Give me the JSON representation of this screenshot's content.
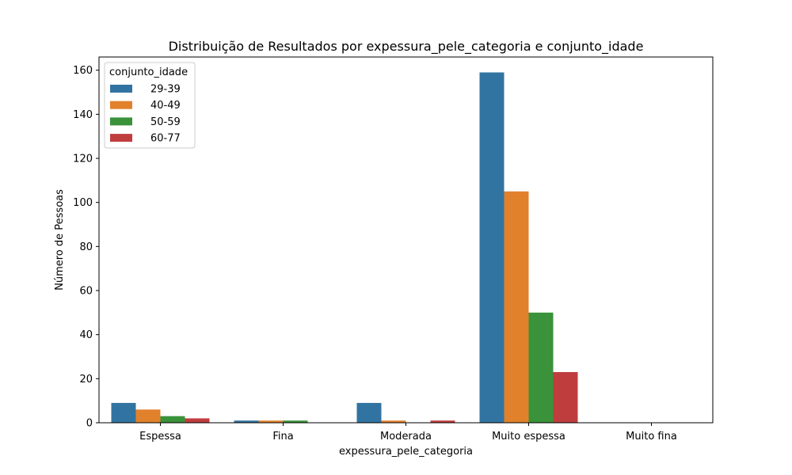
{
  "chart_data": {
    "type": "bar",
    "title": "Distribuição de Resultados por expessura_pele_categoria e conjunto_idade",
    "xlabel": "expessura_pele_categoria",
    "ylabel": "Número de Pessoas",
    "categories": [
      "Espessa",
      "Fina",
      "Moderada",
      "Muito espessa",
      "Muito fina"
    ],
    "ylim": [
      0,
      166
    ],
    "yticks": [
      0,
      20,
      40,
      60,
      80,
      100,
      120,
      140,
      160
    ],
    "grid": false,
    "legend": {
      "title": "conjunto_idade",
      "placement": "upper-left"
    },
    "series": [
      {
        "name": "29-39",
        "color": "#3274a1",
        "values": [
          9,
          1,
          9,
          159,
          0
        ]
      },
      {
        "name": "40-49",
        "color": "#e1812c",
        "values": [
          6,
          1,
          1,
          105,
          0
        ]
      },
      {
        "name": "50-59",
        "color": "#3a923a",
        "values": [
          3,
          1,
          0,
          50,
          0
        ]
      },
      {
        "name": "60-77",
        "color": "#c03d3e",
        "values": [
          2,
          0,
          1,
          23,
          0
        ]
      }
    ]
  }
}
